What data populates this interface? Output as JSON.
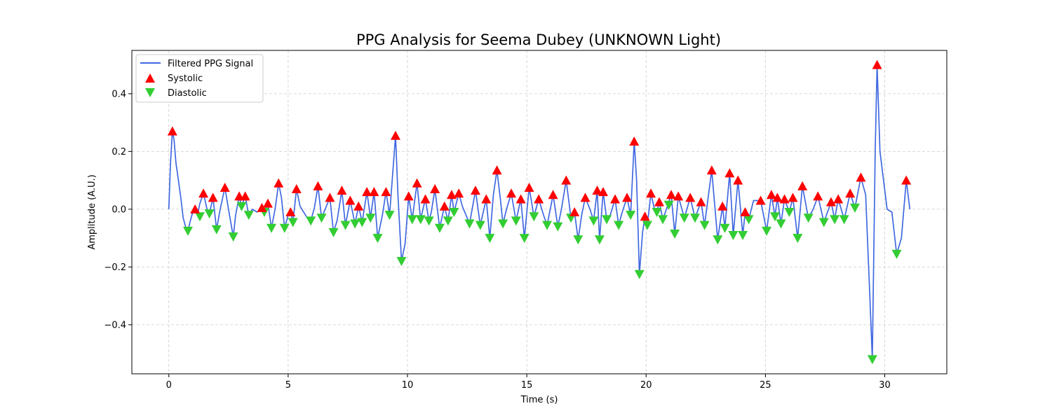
{
  "chart_data": {
    "type": "line",
    "title": "PPG Analysis for Seema Dubey (UNKNOWN Light)",
    "xlabel": "Time (s)",
    "ylabel": "Amplitude (A.U.)",
    "xlim": [
      -1.55,
      32.6
    ],
    "ylim": [
      -0.57,
      0.55
    ],
    "xticks": [
      0,
      5,
      10,
      15,
      20,
      25,
      30
    ],
    "xtick_labels": [
      "0",
      "5",
      "10",
      "15",
      "20",
      "25",
      "30"
    ],
    "yticks": [
      0.4,
      0.2,
      0.0,
      -0.2,
      -0.4
    ],
    "ytick_labels": [
      "0.4",
      "0.2",
      "0.0",
      "−0.2",
      "−0.4"
    ],
    "grid": true,
    "legend_position": "top-left",
    "colors": {
      "signal": "#4169e1",
      "systolic": "#ff0000",
      "diastolic": "#32cd32",
      "grid": "#cccccc"
    },
    "legend": {
      "signal": "Filtered PPG Signal",
      "systolic": "Systolic",
      "diastolic": "Diastolic"
    },
    "signal_points": [
      [
        0.0,
        0.0
      ],
      [
        0.07,
        0.16
      ],
      [
        0.15,
        0.27
      ],
      [
        0.22,
        0.24
      ],
      [
        0.3,
        0.16
      ],
      [
        0.4,
        0.1
      ],
      [
        0.5,
        0.04
      ],
      [
        0.6,
        -0.03
      ],
      [
        0.7,
        -0.06
      ],
      [
        0.8,
        -0.075
      ],
      [
        0.9,
        -0.04
      ],
      [
        1.0,
        -0.01
      ],
      [
        1.1,
        0.0
      ],
      [
        1.2,
        -0.02
      ],
      [
        1.3,
        0.02
      ],
      [
        1.45,
        0.055
      ],
      [
        1.6,
        0.0
      ],
      [
        1.7,
        -0.015
      ],
      [
        1.85,
        0.04
      ],
      [
        2.0,
        -0.07
      ],
      [
        2.15,
        0.0
      ],
      [
        2.35,
        0.075
      ],
      [
        2.5,
        0.0
      ],
      [
        2.7,
        -0.095
      ],
      [
        2.8,
        -0.02
      ],
      [
        2.95,
        0.045
      ],
      [
        3.05,
        0.01
      ],
      [
        3.2,
        0.045
      ],
      [
        3.35,
        -0.02
      ],
      [
        3.5,
        0.0
      ],
      [
        3.7,
        -0.01
      ],
      [
        3.9,
        0.005
      ],
      [
        4.0,
        -0.01
      ],
      [
        4.15,
        0.02
      ],
      [
        4.3,
        -0.065
      ],
      [
        4.45,
        0.0
      ],
      [
        4.6,
        0.09
      ],
      [
        4.72,
        0.04
      ],
      [
        4.85,
        -0.065
      ],
      [
        5.0,
        -0.02
      ],
      [
        5.1,
        -0.01
      ],
      [
        5.2,
        -0.045
      ],
      [
        5.35,
        0.07
      ],
      [
        5.5,
        0.01
      ],
      [
        5.8,
        -0.03
      ],
      [
        5.95,
        -0.04
      ],
      [
        6.1,
        0.005
      ],
      [
        6.25,
        0.08
      ],
      [
        6.4,
        -0.03
      ],
      [
        6.55,
        0.0
      ],
      [
        6.75,
        0.04
      ],
      [
        6.9,
        -0.08
      ],
      [
        7.05,
        -0.04
      ],
      [
        7.25,
        0.065
      ],
      [
        7.4,
        -0.055
      ],
      [
        7.6,
        0.03
      ],
      [
        7.8,
        -0.05
      ],
      [
        7.95,
        0.01
      ],
      [
        8.1,
        -0.045
      ],
      [
        8.3,
        0.06
      ],
      [
        8.45,
        -0.03
      ],
      [
        8.6,
        0.06
      ],
      [
        8.75,
        -0.1
      ],
      [
        8.95,
        -0.02
      ],
      [
        9.1,
        0.06
      ],
      [
        9.25,
        -0.02
      ],
      [
        9.5,
        0.255
      ],
      [
        9.6,
        0.05
      ],
      [
        9.75,
        -0.18
      ],
      [
        9.9,
        -0.12
      ],
      [
        10.05,
        0.045
      ],
      [
        10.2,
        -0.035
      ],
      [
        10.4,
        0.09
      ],
      [
        10.55,
        -0.035
      ],
      [
        10.75,
        0.035
      ],
      [
        10.9,
        -0.04
      ],
      [
        11.0,
        -0.01
      ],
      [
        11.15,
        0.07
      ],
      [
        11.35,
        -0.065
      ],
      [
        11.55,
        0.01
      ],
      [
        11.7,
        -0.04
      ],
      [
        11.85,
        0.05
      ],
      [
        11.95,
        -0.01
      ],
      [
        12.15,
        0.055
      ],
      [
        12.3,
        0.01
      ],
      [
        12.6,
        -0.05
      ],
      [
        12.85,
        0.065
      ],
      [
        13.05,
        -0.055
      ],
      [
        13.3,
        0.035
      ],
      [
        13.45,
        -0.1
      ],
      [
        13.6,
        0.05
      ],
      [
        13.75,
        0.135
      ],
      [
        13.9,
        0.03
      ],
      [
        14.0,
        -0.05
      ],
      [
        14.15,
        0.0
      ],
      [
        14.35,
        0.055
      ],
      [
        14.55,
        -0.04
      ],
      [
        14.75,
        0.035
      ],
      [
        14.9,
        -0.1
      ],
      [
        15.1,
        0.075
      ],
      [
        15.3,
        -0.025
      ],
      [
        15.5,
        0.035
      ],
      [
        15.7,
        -0.02
      ],
      [
        15.85,
        -0.055
      ],
      [
        16.1,
        0.05
      ],
      [
        16.3,
        -0.06
      ],
      [
        16.45,
        0.0
      ],
      [
        16.65,
        0.1
      ],
      [
        16.85,
        -0.03
      ],
      [
        17.0,
        -0.01
      ],
      [
        17.15,
        -0.105
      ],
      [
        17.3,
        -0.02
      ],
      [
        17.45,
        0.04
      ],
      [
        17.65,
        0.0
      ],
      [
        17.8,
        -0.04
      ],
      [
        17.95,
        0.065
      ],
      [
        18.05,
        -0.105
      ],
      [
        18.2,
        0.06
      ],
      [
        18.35,
        -0.035
      ],
      [
        18.5,
        -0.02
      ],
      [
        18.7,
        0.035
      ],
      [
        18.85,
        -0.055
      ],
      [
        19.0,
        -0.01
      ],
      [
        19.2,
        0.04
      ],
      [
        19.35,
        -0.02
      ],
      [
        19.5,
        0.235
      ],
      [
        19.6,
        0.1
      ],
      [
        19.72,
        -0.225
      ],
      [
        19.85,
        -0.08
      ],
      [
        19.95,
        -0.025
      ],
      [
        20.05,
        -0.055
      ],
      [
        20.2,
        0.055
      ],
      [
        20.35,
        0.0
      ],
      [
        20.45,
        -0.01
      ],
      [
        20.55,
        0.025
      ],
      [
        20.7,
        -0.035
      ],
      [
        20.85,
        0.0
      ],
      [
        21.05,
        0.05
      ],
      [
        21.2,
        -0.085
      ],
      [
        21.35,
        0.045
      ],
      [
        21.6,
        -0.03
      ],
      [
        21.85,
        0.04
      ],
      [
        22.05,
        -0.03
      ],
      [
        22.3,
        0.025
      ],
      [
        22.45,
        -0.055
      ],
      [
        22.75,
        0.135
      ],
      [
        23.0,
        -0.105
      ],
      [
        23.2,
        0.01
      ],
      [
        23.3,
        -0.065
      ],
      [
        23.5,
        0.125
      ],
      [
        23.65,
        -0.09
      ],
      [
        23.85,
        0.1
      ],
      [
        24.05,
        -0.09
      ],
      [
        24.15,
        -0.01
      ],
      [
        24.3,
        -0.035
      ],
      [
        24.5,
        0.03
      ],
      [
        24.8,
        0.03
      ],
      [
        25.05,
        -0.075
      ],
      [
        25.25,
        0.05
      ],
      [
        25.4,
        -0.025
      ],
      [
        25.5,
        0.04
      ],
      [
        25.65,
        -0.05
      ],
      [
        25.8,
        0.035
      ],
      [
        26.0,
        -0.01
      ],
      [
        26.15,
        0.04
      ],
      [
        26.35,
        -0.1
      ],
      [
        26.55,
        0.08
      ],
      [
        26.8,
        -0.03
      ],
      [
        27.0,
        0.0
      ],
      [
        27.2,
        0.045
      ],
      [
        27.45,
        -0.045
      ],
      [
        27.75,
        0.025
      ],
      [
        27.9,
        -0.035
      ],
      [
        28.05,
        0.035
      ],
      [
        28.3,
        -0.035
      ],
      [
        28.55,
        0.055
      ],
      [
        28.75,
        0.005
      ],
      [
        29.0,
        0.11
      ],
      [
        29.2,
        0.05
      ],
      [
        29.35,
        -0.25
      ],
      [
        29.48,
        -0.52
      ],
      [
        29.6,
        0.2
      ],
      [
        29.68,
        0.5
      ],
      [
        29.8,
        0.2
      ],
      [
        29.95,
        0.1
      ],
      [
        30.1,
        0.0
      ],
      [
        30.3,
        -0.01
      ],
      [
        30.5,
        -0.155
      ],
      [
        30.7,
        -0.1
      ],
      [
        30.9,
        0.1
      ],
      [
        31.05,
        0.0
      ]
    ],
    "systolic_peaks": [
      [
        0.15,
        0.27
      ],
      [
        1.1,
        0.0
      ],
      [
        1.45,
        0.055
      ],
      [
        1.85,
        0.04
      ],
      [
        2.35,
        0.075
      ],
      [
        2.95,
        0.045
      ],
      [
        3.2,
        0.045
      ],
      [
        3.9,
        0.005
      ],
      [
        4.15,
        0.02
      ],
      [
        4.6,
        0.09
      ],
      [
        5.1,
        -0.01
      ],
      [
        5.35,
        0.07
      ],
      [
        6.25,
        0.08
      ],
      [
        6.75,
        0.04
      ],
      [
        7.25,
        0.065
      ],
      [
        7.6,
        0.03
      ],
      [
        7.95,
        0.01
      ],
      [
        8.3,
        0.06
      ],
      [
        8.6,
        0.06
      ],
      [
        9.1,
        0.06
      ],
      [
        9.5,
        0.255
      ],
      [
        10.05,
        0.045
      ],
      [
        10.4,
        0.09
      ],
      [
        10.75,
        0.035
      ],
      [
        11.15,
        0.07
      ],
      [
        11.55,
        0.01
      ],
      [
        11.85,
        0.05
      ],
      [
        12.15,
        0.055
      ],
      [
        12.85,
        0.065
      ],
      [
        13.3,
        0.035
      ],
      [
        13.75,
        0.135
      ],
      [
        14.35,
        0.055
      ],
      [
        14.75,
        0.035
      ],
      [
        15.1,
        0.075
      ],
      [
        15.5,
        0.035
      ],
      [
        16.1,
        0.05
      ],
      [
        16.65,
        0.1
      ],
      [
        17.0,
        -0.01
      ],
      [
        17.45,
        0.04
      ],
      [
        17.95,
        0.065
      ],
      [
        18.2,
        0.06
      ],
      [
        18.7,
        0.035
      ],
      [
        19.2,
        0.04
      ],
      [
        19.5,
        0.235
      ],
      [
        19.95,
        -0.025
      ],
      [
        20.2,
        0.055
      ],
      [
        20.55,
        0.025
      ],
      [
        21.05,
        0.05
      ],
      [
        21.35,
        0.045
      ],
      [
        21.85,
        0.04
      ],
      [
        22.3,
        0.025
      ],
      [
        22.75,
        0.135
      ],
      [
        23.2,
        0.01
      ],
      [
        23.5,
        0.125
      ],
      [
        23.85,
        0.1
      ],
      [
        24.15,
        -0.01
      ],
      [
        24.8,
        0.03
      ],
      [
        25.25,
        0.05
      ],
      [
        25.5,
        0.04
      ],
      [
        25.8,
        0.035
      ],
      [
        26.15,
        0.04
      ],
      [
        26.55,
        0.08
      ],
      [
        27.2,
        0.045
      ],
      [
        27.75,
        0.025
      ],
      [
        28.05,
        0.035
      ],
      [
        28.55,
        0.055
      ],
      [
        29.0,
        0.11
      ],
      [
        29.68,
        0.5
      ],
      [
        30.9,
        0.1
      ]
    ],
    "diastolic_troughs": [
      [
        0.8,
        -0.075
      ],
      [
        1.3,
        -0.025
      ],
      [
        1.7,
        -0.015
      ],
      [
        2.0,
        -0.07
      ],
      [
        2.7,
        -0.095
      ],
      [
        3.05,
        0.01
      ],
      [
        3.35,
        -0.02
      ],
      [
        4.0,
        -0.01
      ],
      [
        4.3,
        -0.065
      ],
      [
        4.85,
        -0.065
      ],
      [
        5.2,
        -0.045
      ],
      [
        5.95,
        -0.04
      ],
      [
        6.4,
        -0.03
      ],
      [
        6.9,
        -0.08
      ],
      [
        7.4,
        -0.055
      ],
      [
        7.8,
        -0.05
      ],
      [
        8.1,
        -0.045
      ],
      [
        8.45,
        -0.03
      ],
      [
        8.75,
        -0.1
      ],
      [
        9.25,
        -0.02
      ],
      [
        9.75,
        -0.18
      ],
      [
        10.2,
        -0.035
      ],
      [
        10.55,
        -0.035
      ],
      [
        10.9,
        -0.04
      ],
      [
        11.35,
        -0.065
      ],
      [
        11.7,
        -0.04
      ],
      [
        11.95,
        -0.01
      ],
      [
        12.6,
        -0.05
      ],
      [
        13.05,
        -0.055
      ],
      [
        13.45,
        -0.1
      ],
      [
        14.0,
        -0.05
      ],
      [
        14.55,
        -0.04
      ],
      [
        14.9,
        -0.1
      ],
      [
        15.3,
        -0.025
      ],
      [
        15.85,
        -0.055
      ],
      [
        16.3,
        -0.06
      ],
      [
        16.85,
        -0.03
      ],
      [
        17.15,
        -0.105
      ],
      [
        17.8,
        -0.04
      ],
      [
        18.05,
        -0.105
      ],
      [
        18.35,
        -0.035
      ],
      [
        18.85,
        -0.055
      ],
      [
        19.35,
        -0.02
      ],
      [
        19.72,
        -0.225
      ],
      [
        20.05,
        -0.055
      ],
      [
        20.45,
        -0.01
      ],
      [
        20.7,
        -0.035
      ],
      [
        20.95,
        0.015
      ],
      [
        21.2,
        -0.085
      ],
      [
        21.6,
        -0.03
      ],
      [
        22.05,
        -0.03
      ],
      [
        22.45,
        -0.055
      ],
      [
        23.0,
        -0.105
      ],
      [
        23.3,
        -0.065
      ],
      [
        23.65,
        -0.09
      ],
      [
        24.05,
        -0.09
      ],
      [
        24.3,
        -0.035
      ],
      [
        25.05,
        -0.075
      ],
      [
        25.4,
        -0.025
      ],
      [
        25.65,
        -0.05
      ],
      [
        26.0,
        -0.01
      ],
      [
        26.35,
        -0.1
      ],
      [
        26.8,
        -0.03
      ],
      [
        27.45,
        -0.045
      ],
      [
        27.9,
        -0.035
      ],
      [
        28.3,
        -0.035
      ],
      [
        28.75,
        0.005
      ],
      [
        29.48,
        -0.52
      ],
      [
        30.5,
        -0.155
      ]
    ]
  }
}
